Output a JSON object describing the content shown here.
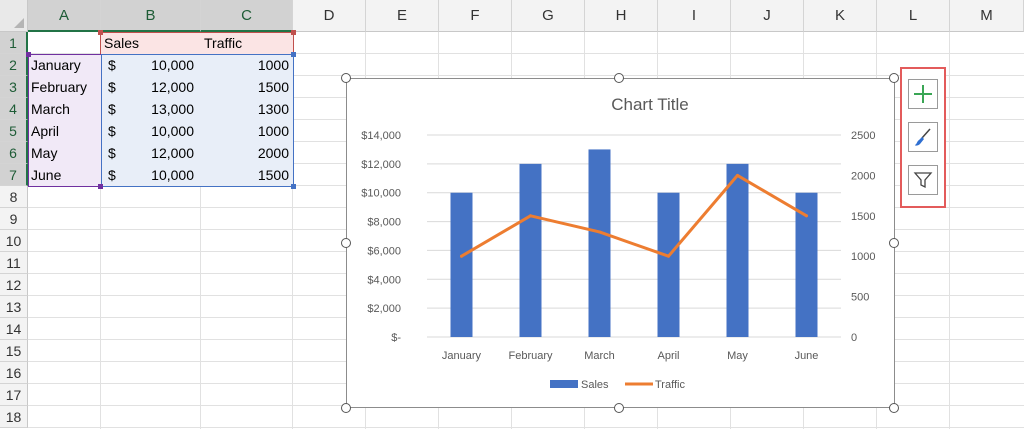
{
  "columns": [
    "A",
    "B",
    "C",
    "D",
    "E",
    "F",
    "G",
    "H",
    "I",
    "J",
    "K",
    "L",
    "M"
  ],
  "rows": [
    "1",
    "2",
    "3",
    "4",
    "5",
    "6",
    "7",
    "8",
    "9",
    "10",
    "11",
    "12",
    "13",
    "14",
    "15",
    "16",
    "17",
    "18"
  ],
  "cells": {
    "header": {
      "sales": "Sales",
      "traffic": "Traffic"
    },
    "data_rows": [
      {
        "month": "January",
        "currency": "$",
        "sales": "10,000",
        "traffic": "1000"
      },
      {
        "month": "February",
        "currency": "$",
        "sales": "12,000",
        "traffic": "1500"
      },
      {
        "month": "March",
        "currency": "$",
        "sales": "13,000",
        "traffic": "1300"
      },
      {
        "month": "April",
        "currency": "$",
        "sales": "10,000",
        "traffic": "1000"
      },
      {
        "month": "May",
        "currency": "$",
        "sales": "12,000",
        "traffic": "2000"
      },
      {
        "month": "June",
        "currency": "$",
        "sales": "10,000",
        "traffic": "1500"
      }
    ]
  },
  "chart_data": {
    "type": "bar",
    "title": "Chart Title",
    "categories": [
      "January",
      "February",
      "March",
      "April",
      "May",
      "June"
    ],
    "series": [
      {
        "name": "Sales",
        "type": "bar",
        "axis": "left",
        "values": [
          10000,
          12000,
          13000,
          10000,
          12000,
          10000
        ],
        "color": "#4472C4"
      },
      {
        "name": "Traffic",
        "type": "line",
        "axis": "right",
        "values": [
          1000,
          1500,
          1300,
          1000,
          2000,
          1500
        ],
        "color": "#ED7D31"
      }
    ],
    "ylim": [
      0,
      14000
    ],
    "y_ticks": [
      "$-",
      "$2,000",
      "$4,000",
      "$6,000",
      "$8,000",
      "$10,000",
      "$12,000",
      "$14,000"
    ],
    "y2lim": [
      0,
      2500
    ],
    "y2_ticks": [
      "0",
      "500",
      "1000",
      "1500",
      "2000",
      "2500"
    ],
    "grid": true,
    "legend": "bottom"
  },
  "chart_tools": [
    {
      "name": "chart-elements-button",
      "icon": "plus-icon"
    },
    {
      "name": "chart-styles-button",
      "icon": "paintbrush-icon"
    },
    {
      "name": "chart-filters-button",
      "icon": "funnel-icon"
    }
  ],
  "colors": {
    "header_fill": "#fbe4e4",
    "month_fill": "#f1e9f7",
    "data_fill": "#e8eef8",
    "sales_border": "#c0504d",
    "month_border": "#7030a0",
    "data_border": "#4472c4"
  }
}
